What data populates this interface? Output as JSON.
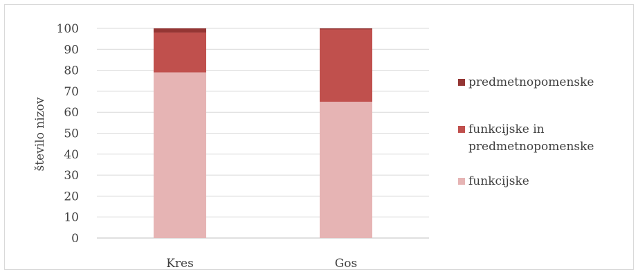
{
  "chart_data": {
    "type": "bar",
    "stacked": true,
    "categories": [
      "Kres",
      "Gos"
    ],
    "series": [
      {
        "name": "funkcijske",
        "values": [
          79,
          65
        ],
        "color": "#e6b4b4"
      },
      {
        "name": "funkcijske in predmetnopomenske",
        "values": [
          19,
          34.5
        ],
        "color": "#c0504d"
      },
      {
        "name": "predmetnopomenske",
        "values": [
          2,
          0.5
        ],
        "color": "#943634"
      }
    ],
    "title": "",
    "xlabel": "",
    "ylabel": "število nizov",
    "ylim": [
      0,
      100
    ],
    "yticks": [
      "0",
      "10",
      "20",
      "30",
      "40",
      "50",
      "60",
      "70",
      "80",
      "90",
      "100"
    ],
    "grid": true,
    "legend_position": "right",
    "legend": [
      {
        "lines": [
          "predmetnopomenske"
        ],
        "series": 2
      },
      {
        "lines": [
          "funkcijske in",
          "predmetnopomenske"
        ],
        "series": 1
      },
      {
        "lines": [
          "funkcijske"
        ],
        "series": 0
      }
    ],
    "colors": {
      "grid": "#d9d9d9",
      "axis": "#bfbfbf",
      "text": "#404040"
    }
  }
}
